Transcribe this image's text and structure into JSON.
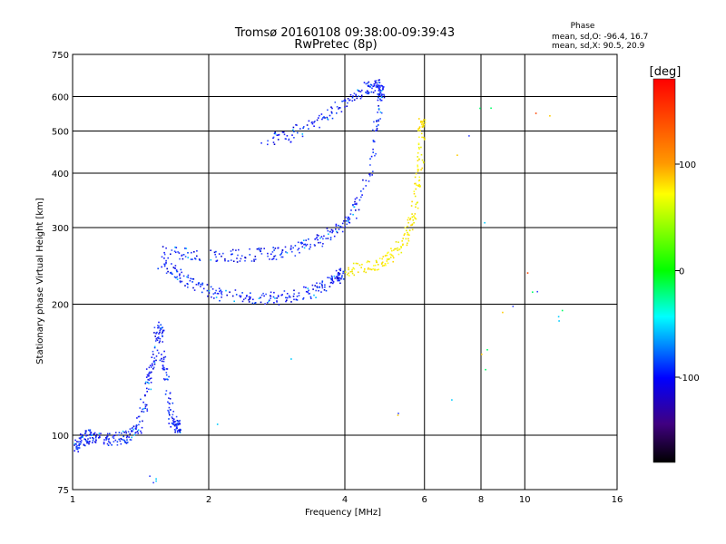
{
  "header": {
    "title_line1": "Tromsø 20160108 09:38:00-09:39:43",
    "title_line2": "RwPretec (8p)"
  },
  "phase_box": {
    "title": "Phase",
    "line_o": "mean, sd,O: -96.4, 16.7",
    "line_x": "mean, sd,X:  90.5, 20.9"
  },
  "chart_data": {
    "type": "scatter",
    "title": "Tromsø 20160108 09:38:00-09:39:43",
    "subtitle": "RwPretec (8p)",
    "xlabel": "Frequency [MHz]",
    "ylabel": "Stationary phase Virtual Height [km]",
    "x_scale": "log",
    "y_scale": "log",
    "xlim": [
      1,
      16
    ],
    "ylim": [
      75,
      750
    ],
    "x_ticks": [
      1,
      2,
      4,
      6,
      8,
      10,
      16
    ],
    "x_tick_labels": [
      "1",
      "2",
      "4",
      "6",
      "8",
      "10",
      "16"
    ],
    "y_ticks": [
      75,
      100,
      200,
      300,
      400,
      500,
      600,
      750
    ],
    "y_tick_labels": [
      "75",
      "100",
      "200",
      "300",
      "400",
      "500",
      "600",
      "750"
    ],
    "grid": true,
    "colorbar": {
      "label": "[deg]",
      "range": [
        -180,
        180
      ],
      "ticks": [
        100,
        0,
        -100
      ],
      "tick_labels": [
        "100",
        "0",
        "-100"
      ]
    },
    "series": [
      {
        "trace": "low-E-layer",
        "color_hint": "blue",
        "points": [
          [
            1.0,
            93
          ],
          [
            1.02,
            95
          ],
          [
            1.05,
            98
          ],
          [
            1.08,
            100
          ],
          [
            1.12,
            99
          ],
          [
            1.2,
            98
          ],
          [
            1.28,
            99
          ],
          [
            1.35,
            101
          ],
          [
            1.4,
            105
          ],
          [
            1.44,
            120
          ],
          [
            1.48,
            140
          ],
          [
            1.52,
            160
          ],
          [
            1.55,
            180
          ],
          [
            1.58,
            150
          ],
          [
            1.62,
            130
          ],
          [
            1.65,
            110
          ],
          [
            1.7,
            105
          ]
        ]
      },
      {
        "trace": "F1-lower",
        "color_hint": "blue",
        "points": [
          [
            1.55,
            250
          ],
          [
            1.7,
            235
          ],
          [
            1.8,
            225
          ],
          [
            2.0,
            215
          ],
          [
            2.2,
            210
          ],
          [
            2.5,
            208
          ],
          [
            2.8,
            207
          ],
          [
            3.1,
            210
          ],
          [
            3.4,
            215
          ],
          [
            3.7,
            225
          ],
          [
            3.9,
            235
          ]
        ]
      },
      {
        "trace": "F1-upper",
        "color_hint": "blue",
        "points": [
          [
            1.55,
            265
          ],
          [
            1.8,
            262
          ],
          [
            2.1,
            258
          ],
          [
            2.4,
            260
          ],
          [
            2.7,
            262
          ],
          [
            3.0,
            265
          ],
          [
            3.3,
            275
          ],
          [
            3.6,
            285
          ],
          [
            3.9,
            300
          ],
          [
            4.2,
            330
          ],
          [
            4.5,
            400
          ],
          [
            4.7,
            520
          ],
          [
            4.8,
            620
          ]
        ]
      },
      {
        "trace": "F2-top",
        "color_hint": "blue",
        "points": [
          [
            2.6,
            470
          ],
          [
            3.0,
            490
          ],
          [
            3.4,
            520
          ],
          [
            3.8,
            560
          ],
          [
            4.2,
            600
          ],
          [
            4.5,
            630
          ],
          [
            4.7,
            640
          ]
        ]
      },
      {
        "trace": "X-mode",
        "color_hint": "yellow",
        "points": [
          [
            4.0,
            240
          ],
          [
            4.4,
            245
          ],
          [
            4.8,
            250
          ],
          [
            5.1,
            260
          ],
          [
            5.4,
            280
          ],
          [
            5.6,
            310
          ],
          [
            5.75,
            360
          ],
          [
            5.85,
            430
          ],
          [
            5.9,
            520
          ]
        ]
      },
      {
        "trace": "scatter-misc",
        "color_hint": "mixed",
        "points": [
          [
            5.1,
            110
          ],
          [
            8.1,
            130
          ],
          [
            8.1,
            170
          ],
          [
            10.5,
            215
          ],
          [
            12.5,
            180
          ],
          [
            6.5,
            400
          ],
          [
            8.1,
            570
          ],
          [
            12.5,
            530
          ],
          [
            1.5,
            80
          ]
        ]
      }
    ]
  }
}
